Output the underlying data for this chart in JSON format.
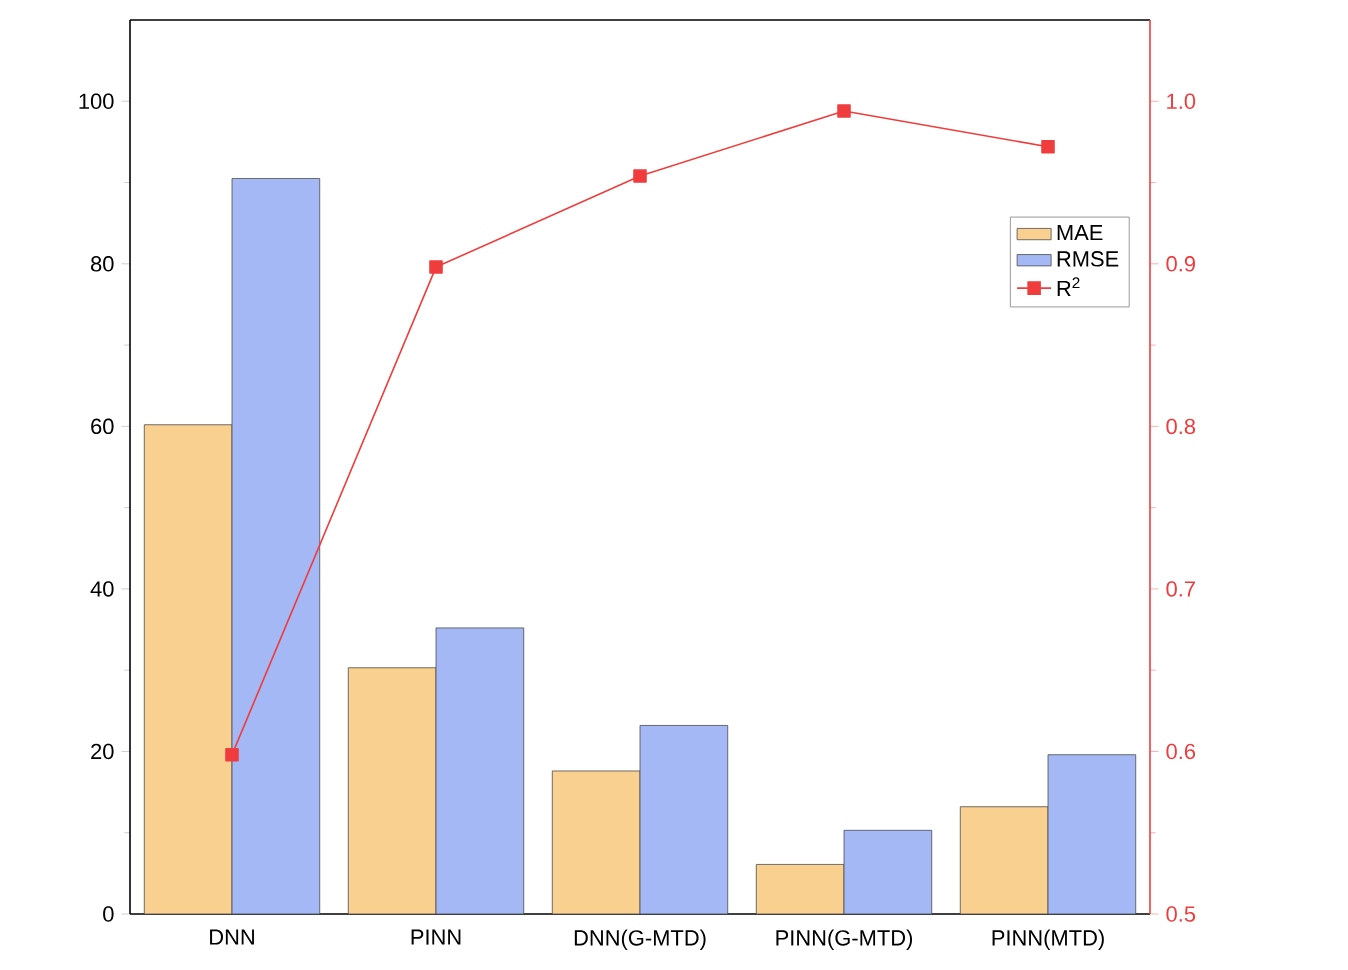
{
  "chart_data": {
    "type": "bar",
    "categories": [
      "DNN",
      "PINN",
      "DNN(G-MTD)",
      "PINN(G-MTD)",
      "PINN(MTD)"
    ],
    "series": [
      {
        "name": "MAE",
        "color": "#f9d08f",
        "values": [
          60.2,
          30.3,
          17.6,
          6.1,
          13.2
        ]
      },
      {
        "name": "RMSE",
        "color": "#a3b8f5",
        "values": [
          90.5,
          35.2,
          23.2,
          10.3,
          19.6
        ]
      },
      {
        "name": "R$^{2}$",
        "type": "line",
        "axis": "y2",
        "color": "#f03c3c",
        "marker": "square",
        "values": [
          0.598,
          0.898,
          0.954,
          0.994,
          0.972
        ]
      }
    ],
    "ylim": [
      0,
      110
    ],
    "yticks": [
      0,
      20,
      40,
      60,
      80,
      100
    ],
    "y2lim": [
      0.5,
      1.05
    ],
    "y2ticks": [
      {
        "value": 0.5,
        "label": "0.5"
      },
      {
        "value": 0.6,
        "label": "0.6"
      },
      {
        "value": 0.7,
        "label": "0.7"
      },
      {
        "value": 0.8,
        "label": "0.8"
      },
      {
        "value": 0.9,
        "label": "0.9"
      },
      {
        "value": 1.0,
        "label": "1.0"
      }
    ],
    "legend": "top right",
    "grid": false
  }
}
